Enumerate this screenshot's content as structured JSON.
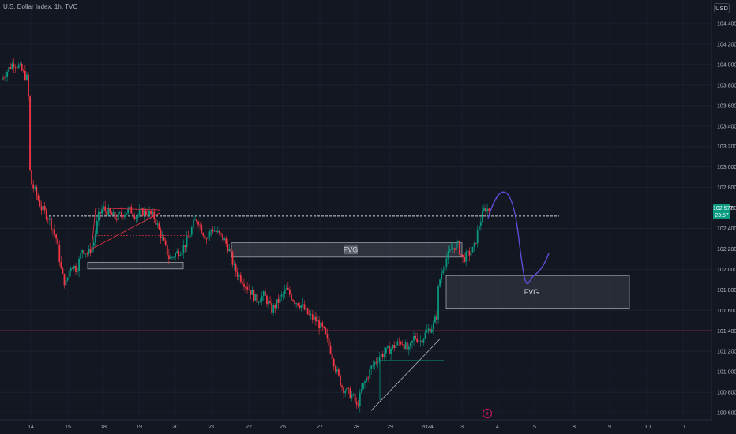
{
  "header": {
    "symbol_line": "U.S. Dollar Index, 1h, TVC",
    "currency_label": "USD"
  },
  "price_tag": {
    "price": "102.577",
    "countdown": "23:57",
    "color": "#089981"
  },
  "colors": {
    "up": "#089981",
    "down": "#f23645",
    "background": "#131722",
    "projection": "#5b4fd6",
    "support_line": "#f23645"
  },
  "watermark": {
    "icon": "tradingview-bolt-icon"
  },
  "chart_data": {
    "type": "candlestick",
    "y_axis": {
      "ylim": [
        100.55,
        104.55
      ],
      "ticks": [
        "104.400",
        "104.200",
        "104.000",
        "103.800",
        "103.600",
        "103.400",
        "103.200",
        "103.000",
        "102.800",
        "102.600",
        "102.400",
        "102.200",
        "102.000",
        "101.800",
        "101.600",
        "101.400",
        "101.200",
        "101.000",
        "100.800",
        "100.600"
      ]
    },
    "x_axis": {
      "ticks": [
        "14",
        "15",
        "18",
        "19",
        "20",
        "21",
        "22",
        "25",
        "27",
        "28",
        "29",
        "2024",
        "3",
        "4",
        "5",
        "8",
        "9",
        "10",
        "11"
      ]
    },
    "current_price": 102.577,
    "price_path": [
      [
        0,
        103.85
      ],
      [
        0.02,
        103.95
      ],
      [
        0.034,
        104.02
      ],
      [
        0.05,
        103.98
      ],
      [
        0.064,
        103.9
      ],
      [
        0.074,
        103.85
      ],
      [
        0.078,
        103.0
      ],
      [
        0.082,
        102.85
      ],
      [
        0.094,
        102.75
      ],
      [
        0.11,
        102.6
      ],
      [
        0.13,
        102.5
      ],
      [
        0.15,
        102.3
      ],
      [
        0.165,
        101.95
      ],
      [
        0.175,
        101.85
      ],
      [
        0.19,
        102.05
      ],
      [
        0.205,
        102.0
      ],
      [
        0.22,
        102.2
      ],
      [
        0.235,
        102.15
      ],
      [
        0.25,
        102.25
      ],
      [
        0.262,
        102.5
      ],
      [
        0.275,
        102.6
      ],
      [
        0.29,
        102.55
      ],
      [
        0.31,
        102.5
      ],
      [
        0.33,
        102.55
      ],
      [
        0.35,
        102.58
      ],
      [
        0.365,
        102.52
      ],
      [
        0.38,
        102.56
      ],
      [
        0.4,
        102.55
      ],
      [
        0.415,
        102.5
      ],
      [
        0.43,
        102.35
      ],
      [
        0.445,
        102.2
      ],
      [
        0.455,
        102.1
      ],
      [
        0.47,
        102.15
      ],
      [
        0.49,
        102.2
      ],
      [
        0.505,
        102.3
      ],
      [
        0.52,
        102.45
      ],
      [
        0.53,
        102.5
      ],
      [
        0.54,
        102.4
      ],
      [
        0.555,
        102.3
      ],
      [
        0.57,
        102.4
      ],
      [
        0.585,
        102.35
      ],
      [
        0.6,
        102.3
      ],
      [
        0.615,
        102.2
      ],
      [
        0.63,
        102.0
      ],
      [
        0.65,
        101.9
      ],
      [
        0.67,
        101.8
      ],
      [
        0.69,
        101.7
      ],
      [
        0.71,
        101.75
      ],
      [
        0.73,
        101.6
      ],
      [
        0.75,
        101.7
      ],
      [
        0.77,
        101.8
      ],
      [
        0.79,
        101.7
      ],
      [
        0.81,
        101.65
      ],
      [
        0.83,
        101.55
      ],
      [
        0.85,
        101.5
      ],
      [
        0.87,
        101.4
      ],
      [
        0.89,
        101.2
      ],
      [
        0.905,
        101.0
      ],
      [
        0.92,
        100.85
      ],
      [
        0.935,
        100.8
      ],
      [
        0.95,
        100.75
      ],
      [
        0.96,
        100.65
      ],
      [
        0.975,
        100.85
      ],
      [
        1.0,
        101.05
      ],
      [
        1.02,
        101.15
      ],
      [
        1.04,
        101.2
      ],
      [
        1.06,
        101.25
      ],
      [
        1.08,
        101.3
      ],
      [
        1.1,
        101.2
      ],
      [
        1.115,
        101.35
      ],
      [
        1.13,
        101.3
      ],
      [
        1.15,
        101.4
      ],
      [
        1.165,
        101.45
      ],
      [
        1.175,
        101.55
      ],
      [
        1.18,
        101.85
      ],
      [
        1.19,
        102.0
      ],
      [
        1.2,
        102.1
      ],
      [
        1.215,
        102.2
      ],
      [
        1.23,
        102.25
      ],
      [
        1.245,
        102.1
      ],
      [
        1.26,
        102.15
      ],
      [
        1.275,
        102.2
      ],
      [
        1.29,
        102.45
      ],
      [
        1.305,
        102.6
      ],
      [
        1.315,
        102.58
      ]
    ],
    "annotations": {
      "dotted_price_line": 102.52,
      "support_line": 101.4,
      "fvg_upper": {
        "label": "FVG",
        "top": 102.26,
        "bottom": 102.12
      },
      "fvg_lower": {
        "label": "FVG",
        "top": 101.94,
        "bottom": 101.62
      },
      "consolidation_box": {
        "top": 102.07,
        "bottom": 102.02
      },
      "projection_path": "up to ~102.75 then down to ~101.94 then up to ~102.16"
    }
  }
}
